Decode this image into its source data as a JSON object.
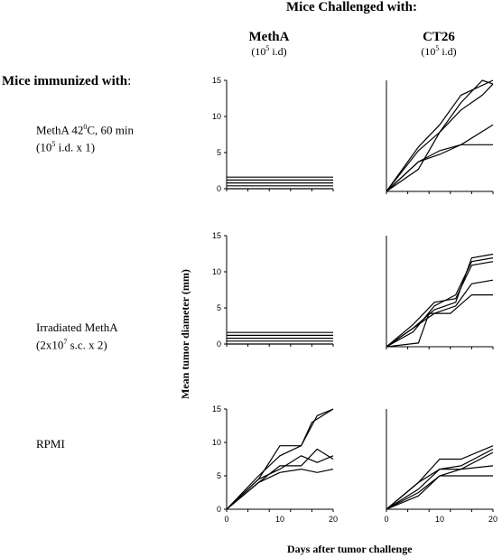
{
  "figure": {
    "title": "Mice Challenged with:",
    "columns": [
      {
        "label": "MethA",
        "dose_base": "(10",
        "dose_exp": "5",
        "dose_rest": " i.d)"
      },
      {
        "label": "CT26",
        "dose_base": "(10",
        "dose_exp": "5",
        "dose_rest": " i.d)"
      }
    ],
    "row_header": "Mice immunized with",
    "row_header_colon": ":",
    "rows": [
      {
        "line1_a": "MethA 42",
        "line1_sup": "0",
        "line1_b": "C, 60 min",
        "line2_a": "(10",
        "line2_sup": "5",
        "line2_b": " i.d. x 1)"
      },
      {
        "line1_a": "Irradiated MethA",
        "line1_sup": "",
        "line1_b": "",
        "line2_a": "(2x10",
        "line2_sup": "7",
        "line2_b": " s.c. x 2)"
      },
      {
        "line1_a": "RPMI",
        "line1_sup": "",
        "line1_b": "",
        "line2_a": "",
        "line2_sup": "",
        "line2_b": ""
      }
    ],
    "ylabel": "Mean tumor diameter (mm)",
    "xlabel": "Days after tumor challenge"
  },
  "chart_data": [
    {
      "type": "line",
      "id": "metha-challenge-metha-immunized",
      "ylim": [
        0,
        15
      ],
      "yticks": [
        0,
        5,
        10,
        15
      ],
      "xlim": [
        0,
        20
      ],
      "xticks": [],
      "xtick_labels": false,
      "series": [
        {
          "x": [
            0,
            20
          ],
          "y": [
            0,
            0
          ]
        },
        {
          "x": [
            0,
            20
          ],
          "y": [
            0.4,
            0.4
          ]
        },
        {
          "x": [
            0,
            20
          ],
          "y": [
            0.8,
            0.8
          ]
        },
        {
          "x": [
            0,
            20
          ],
          "y": [
            1.2,
            1.2
          ]
        },
        {
          "x": [
            0,
            20
          ],
          "y": [
            1.6,
            1.6
          ]
        }
      ]
    },
    {
      "type": "line",
      "id": "ct26-challenge-metha-immunized",
      "ylim": [
        0,
        15
      ],
      "yticks": [],
      "xlim": [
        0,
        20
      ],
      "xticks": [],
      "xtick_labels": false,
      "series": [
        {
          "x": [
            0,
            6,
            10,
            14,
            20
          ],
          "y": [
            0,
            6,
            9,
            13,
            15
          ]
        },
        {
          "x": [
            0,
            6,
            10,
            14,
            18,
            20
          ],
          "y": [
            0,
            5.5,
            8,
            12,
            15,
            14.5
          ]
        },
        {
          "x": [
            0,
            6,
            10,
            14,
            18,
            20
          ],
          "y": [
            0,
            3,
            8,
            11,
            13,
            14.5
          ]
        },
        {
          "x": [
            0,
            6,
            10,
            14,
            20
          ],
          "y": [
            0,
            4,
            5,
            6.3,
            9
          ]
        },
        {
          "x": [
            0,
            6,
            10,
            14,
            20
          ],
          "y": [
            0,
            4,
            5.5,
            6.3,
            6.3
          ]
        }
      ]
    },
    {
      "type": "line",
      "id": "metha-challenge-irradiated-immunized",
      "ylim": [
        0,
        15
      ],
      "yticks": [
        0,
        5,
        10,
        15
      ],
      "xlim": [
        0,
        20
      ],
      "xticks": [],
      "xtick_labels": false,
      "series": [
        {
          "x": [
            0,
            20
          ],
          "y": [
            0,
            0
          ]
        },
        {
          "x": [
            0,
            20
          ],
          "y": [
            0.4,
            0.4
          ]
        },
        {
          "x": [
            0,
            20
          ],
          "y": [
            0.8,
            0.8
          ]
        },
        {
          "x": [
            0,
            20
          ],
          "y": [
            1.2,
            1.2
          ]
        },
        {
          "x": [
            0,
            20
          ],
          "y": [
            1.6,
            1.6
          ]
        }
      ]
    },
    {
      "type": "line",
      "id": "ct26-challenge-irradiated-immunized",
      "ylim": [
        0,
        15
      ],
      "yticks": [],
      "xlim": [
        0,
        20
      ],
      "xticks": [],
      "xtick_labels": false,
      "series": [
        {
          "x": [
            0,
            5,
            9,
            13,
            16,
            20
          ],
          "y": [
            0,
            2.5,
            5,
            6,
            12,
            12.5
          ]
        },
        {
          "x": [
            0,
            5,
            9,
            13,
            16,
            20
          ],
          "y": [
            0,
            2,
            5.5,
            7,
            11.5,
            12
          ]
        },
        {
          "x": [
            0,
            5,
            9,
            13,
            16,
            20
          ],
          "y": [
            0,
            3,
            6,
            6.5,
            11,
            11.5
          ]
        },
        {
          "x": [
            0,
            5,
            9,
            13,
            16,
            20
          ],
          "y": [
            0,
            2.5,
            4.5,
            5.5,
            8.5,
            9
          ]
        },
        {
          "x": [
            0,
            6,
            8,
            12,
            16,
            20
          ],
          "y": [
            0,
            0.5,
            4.5,
            4.5,
            7,
            7
          ]
        }
      ]
    },
    {
      "type": "line",
      "id": "metha-challenge-rpmi",
      "ylim": [
        0,
        15
      ],
      "yticks": [
        0,
        5,
        10,
        15
      ],
      "xlim": [
        0,
        20
      ],
      "xticks": [
        0,
        10,
        20
      ],
      "xtick_labels": true,
      "series": [
        {
          "x": [
            0,
            6,
            10,
            14,
            16,
            20
          ],
          "y": [
            0,
            5,
            8,
            9.5,
            13,
            15
          ]
        },
        {
          "x": [
            0,
            6,
            10,
            14,
            17,
            20
          ],
          "y": [
            0,
            4.5,
            9.5,
            9.5,
            14,
            15
          ]
        },
        {
          "x": [
            0,
            6,
            10,
            14,
            17,
            20
          ],
          "y": [
            0,
            4.5,
            6,
            8,
            7,
            8
          ]
        },
        {
          "x": [
            0,
            6,
            10,
            14,
            17,
            20
          ],
          "y": [
            0,
            4,
            6.5,
            6.5,
            9,
            7.5
          ]
        },
        {
          "x": [
            0,
            6,
            10,
            14,
            17,
            20
          ],
          "y": [
            0,
            4,
            5.5,
            6,
            5.5,
            6
          ]
        }
      ]
    },
    {
      "type": "line",
      "id": "ct26-challenge-rpmi",
      "ylim": [
        0,
        15
      ],
      "yticks": [],
      "xlim": [
        0,
        20
      ],
      "xticks": [
        0,
        10,
        20
      ],
      "xtick_labels": true,
      "series": [
        {
          "x": [
            0,
            6,
            10,
            14,
            20
          ],
          "y": [
            0,
            4,
            7.5,
            7.5,
            9.5
          ]
        },
        {
          "x": [
            0,
            6,
            10,
            14,
            20
          ],
          "y": [
            0,
            4,
            6,
            6.5,
            9
          ]
        },
        {
          "x": [
            0,
            6,
            10,
            14,
            20
          ],
          "y": [
            0,
            3,
            6,
            6,
            8.5
          ]
        },
        {
          "x": [
            0,
            6,
            10,
            14,
            20
          ],
          "y": [
            0,
            2,
            5,
            6,
            6.5
          ]
        },
        {
          "x": [
            0,
            6,
            10,
            14,
            20
          ],
          "y": [
            0,
            2.5,
            5,
            5,
            5
          ]
        }
      ]
    }
  ]
}
